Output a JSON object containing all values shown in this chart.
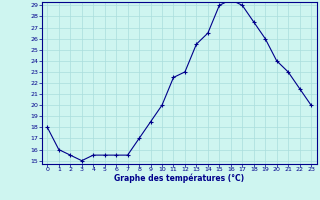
{
  "x": [
    0,
    1,
    2,
    3,
    4,
    5,
    6,
    7,
    8,
    9,
    10,
    11,
    12,
    13,
    14,
    15,
    16,
    17,
    18,
    19,
    20,
    21,
    22,
    23
  ],
  "y": [
    18.0,
    16.0,
    15.5,
    15.0,
    15.5,
    15.5,
    15.5,
    15.5,
    17.0,
    18.5,
    20.0,
    22.5,
    23.0,
    25.5,
    26.5,
    29.0,
    29.5,
    29.0,
    27.5,
    26.0,
    24.0,
    23.0,
    21.5,
    20.0
  ],
  "line_color": "#00008B",
  "marker": "+",
  "marker_color": "#00008B",
  "bg_color": "#cef5f0",
  "grid_color": "#aadddd",
  "xlabel": "Graphe des températures (°C)",
  "xlabel_color": "#00008B",
  "tick_color": "#00008B",
  "axis_color": "#00008B",
  "ylim_min": 15,
  "ylim_max": 29,
  "xlim_min": 0,
  "xlim_max": 23,
  "yticks": [
    15,
    16,
    17,
    18,
    19,
    20,
    21,
    22,
    23,
    24,
    25,
    26,
    27,
    28,
    29
  ],
  "xticks": [
    0,
    1,
    2,
    3,
    4,
    5,
    6,
    7,
    8,
    9,
    10,
    11,
    12,
    13,
    14,
    15,
    16,
    17,
    18,
    19,
    20,
    21,
    22,
    23
  ]
}
